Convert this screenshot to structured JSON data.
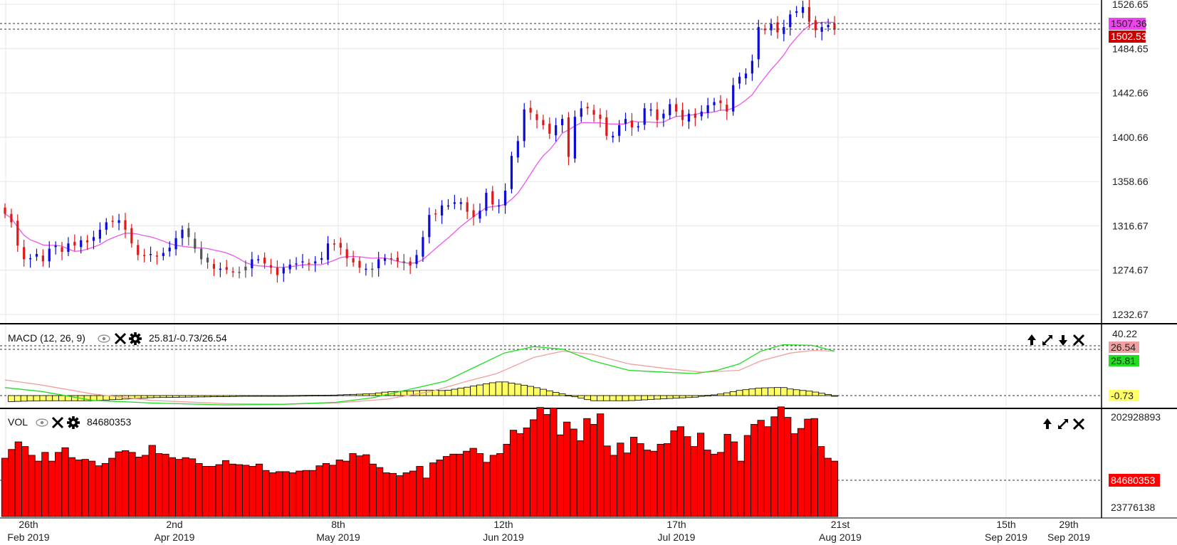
{
  "colors": {
    "up_candle": "#0b0bdc",
    "down_candle": "#e01818",
    "neutral_candle": "#555555",
    "sma_line": "#ee55ee",
    "macd_line": "#22dd22",
    "signal_line": "#f0a0a0",
    "histogram": "#ffff66",
    "volume": "#ff0000",
    "grid": "#e6e6e6",
    "price_tag_high": "#ee44ee",
    "price_tag_close": "#cc0000",
    "macd_tag_signal": "#f0a0a0",
    "macd_tag_macd": "#22dd22",
    "macd_tag_hist": "#ffff66",
    "vol_tag": "#ff0000"
  },
  "price_panel": {
    "y_ticks": [
      "1526.65",
      "1484.65",
      "1442.66",
      "1400.66",
      "1358.66",
      "1316.67",
      "1274.67",
      "1232.67"
    ],
    "ylim": [
      1232.67,
      1526.65
    ],
    "tag_high": "1507.36",
    "tag_close": "1502.53"
  },
  "macd_panel": {
    "title": "MACD (12, 26, 9)",
    "values_text": "25.81/-0.73/26.54",
    "axis_top": "40.22",
    "tag_signal": "26.54",
    "tag_macd": "25.81",
    "tag_hist": "-0.73",
    "icons": [
      "eye-icon",
      "close-icon",
      "gear-icon"
    ],
    "controls": [
      "move-up-icon",
      "maximize-icon",
      "move-down-icon",
      "close-icon"
    ]
  },
  "vol_panel": {
    "title": "VOL",
    "value_text": "84680353",
    "axis_top": "202928893",
    "axis_bottom": "23776138",
    "tag_value": "84680353",
    "icons": [
      "eye-icon",
      "close-icon",
      "gear-icon"
    ],
    "controls": [
      "move-up-icon",
      "maximize-icon",
      "close-icon"
    ]
  },
  "x_axis": {
    "labels": [
      {
        "day": "26th",
        "month": "Feb 2019"
      },
      {
        "day": "2nd",
        "month": "Apr 2019"
      },
      {
        "day": "8th",
        "month": "May 2019"
      },
      {
        "day": "12th",
        "month": "Jun 2019"
      },
      {
        "day": "17th",
        "month": "Jul 2019"
      },
      {
        "day": "21st",
        "month": "Aug 2019"
      },
      {
        "day": "15th",
        "month": "Sep 2019"
      },
      {
        "day": "29th",
        "month": "Sep 2019"
      }
    ]
  },
  "chart_data": [
    {
      "type": "candlestick",
      "title": "",
      "ylim": [
        1232.67,
        1526.65
      ],
      "closes": [
        1328,
        1320,
        1298,
        1285,
        1286,
        1290,
        1283,
        1295,
        1298,
        1292,
        1300,
        1298,
        1303,
        1301,
        1306,
        1313,
        1320,
        1321,
        1322,
        1313,
        1300,
        1289,
        1288,
        1290,
        1288,
        1291,
        1296,
        1305,
        1313,
        1306,
        1295,
        1285,
        1282,
        1276,
        1276,
        1275,
        1273,
        1273,
        1278,
        1285,
        1285,
        1281,
        1277,
        1270,
        1277,
        1280,
        1281,
        1283,
        1281,
        1283,
        1286,
        1300,
        1299,
        1296,
        1286,
        1282,
        1277,
        1276,
        1275,
        1285,
        1286,
        1285,
        1283,
        1283,
        1279,
        1289,
        1306,
        1327,
        1328,
        1336,
        1336,
        1339,
        1339,
        1330,
        1325,
        1331,
        1348,
        1337,
        1336,
        1350,
        1383,
        1397,
        1427,
        1424,
        1417,
        1412,
        1404,
        1412,
        1418,
        1382,
        1420,
        1428,
        1428,
        1422,
        1418,
        1402,
        1402,
        1412,
        1418,
        1410,
        1411,
        1428,
        1427,
        1417,
        1423,
        1432,
        1425,
        1417,
        1423,
        1419,
        1425,
        1431,
        1434,
        1433,
        1425,
        1450,
        1458,
        1461,
        1473,
        1505,
        1502,
        1508,
        1500,
        1505,
        1517,
        1520,
        1524,
        1510,
        1502,
        1505,
        1507,
        1502.53
      ],
      "sma_visible": true
    },
    {
      "type": "line",
      "title": "MACD (12, 26, 9)",
      "series": [
        {
          "name": "MACD",
          "last": 25.81
        },
        {
          "name": "Signal",
          "last": 26.54
        },
        {
          "name": "Histogram",
          "last": -0.73
        }
      ],
      "macd_path": [
        [
          0,
          0.72
        ],
        [
          0.05,
          0.78
        ],
        [
          0.12,
          0.92
        ],
        [
          0.2,
          0.96
        ],
        [
          0.3,
          0.99
        ],
        [
          0.38,
          0.98
        ],
        [
          0.45,
          0.95
        ],
        [
          0.5,
          0.88
        ],
        [
          0.55,
          0.75
        ],
        [
          0.6,
          0.62
        ],
        [
          0.64,
          0.4
        ],
        [
          0.68,
          0.18
        ],
        [
          0.72,
          0.08
        ],
        [
          0.76,
          0.12
        ],
        [
          0.8,
          0.3
        ],
        [
          0.85,
          0.45
        ],
        [
          0.9,
          0.48
        ],
        [
          0.94,
          0.5
        ],
        [
          0.97,
          0.45
        ],
        [
          1.0,
          0.35
        ],
        [
          1.03,
          0.15
        ],
        [
          1.06,
          0.05
        ],
        [
          1.1,
          0.06
        ],
        [
          1.13,
          0.15
        ]
      ],
      "signal_path": [
        [
          0,
          0.6
        ],
        [
          0.05,
          0.68
        ],
        [
          0.12,
          0.82
        ],
        [
          0.2,
          0.92
        ],
        [
          0.3,
          0.97
        ],
        [
          0.38,
          0.98
        ],
        [
          0.45,
          0.96
        ],
        [
          0.52,
          0.9
        ],
        [
          0.58,
          0.78
        ],
        [
          0.63,
          0.62
        ],
        [
          0.67,
          0.5
        ],
        [
          0.72,
          0.25
        ],
        [
          0.76,
          0.15
        ],
        [
          0.8,
          0.2
        ],
        [
          0.85,
          0.35
        ],
        [
          0.9,
          0.42
        ],
        [
          0.95,
          0.48
        ],
        [
          1.0,
          0.45
        ],
        [
          1.03,
          0.3
        ],
        [
          1.07,
          0.18
        ],
        [
          1.1,
          0.14
        ],
        [
          1.13,
          0.15
        ]
      ]
    },
    {
      "type": "bar",
      "title": "VOL",
      "ylim": [
        23776138,
        202928893
      ],
      "values": [
        100,
        115,
        128,
        120,
        105,
        95,
        110,
        95,
        110,
        118,
        101,
        97,
        98,
        95,
        87,
        91,
        100,
        111,
        113,
        110,
        102,
        105,
        122,
        108,
        107,
        101,
        98,
        101,
        99,
        91,
        86,
        86,
        89,
        96,
        90,
        89,
        88,
        86,
        90,
        79,
        75,
        77,
        77,
        75,
        78,
        79,
        79,
        87,
        91,
        88,
        97,
        95,
        108,
        104,
        106,
        90,
        84,
        75,
        74,
        70,
        75,
        78,
        86,
        66,
        92,
        97,
        103,
        107,
        107,
        112,
        117,
        108,
        93,
        105,
        108,
        124,
        148,
        142,
        152,
        166,
        187,
        175,
        186,
        140,
        162,
        150,
        130,
        168,
        158,
        176,
        121,
        105,
        126,
        109,
        136,
        125,
        114,
        112,
        124,
        125,
        147,
        154,
        137,
        120,
        143,
        114,
        107,
        110,
        141,
        128,
        95,
        139,
        158,
        165,
        154,
        171,
        188,
        170,
        142,
        151,
        167,
        168,
        120,
        100,
        95
      ]
    }
  ]
}
